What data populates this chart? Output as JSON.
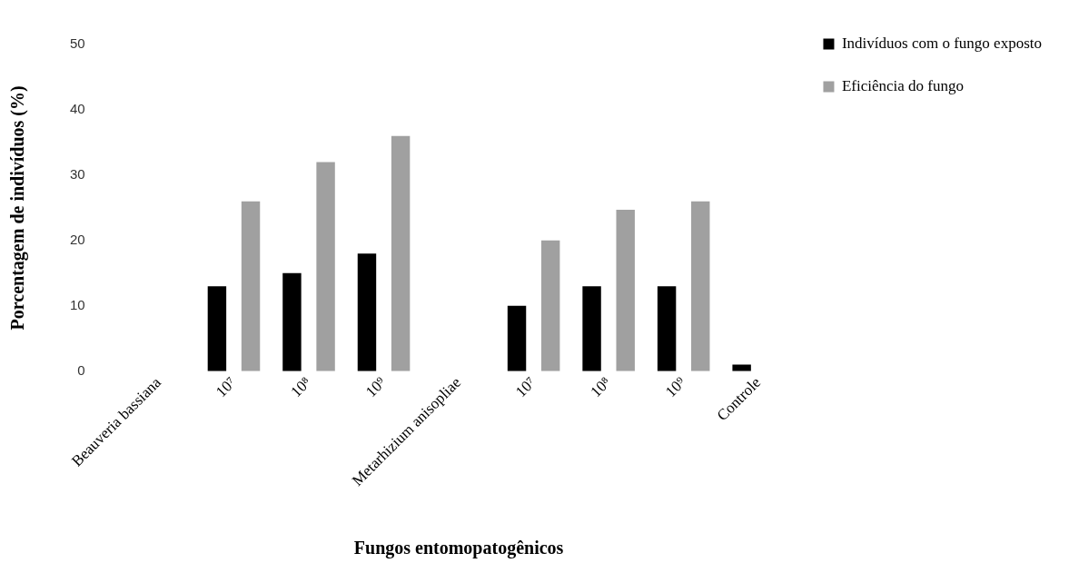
{
  "chart_data": {
    "type": "bar",
    "xlabel": "Fungos entomopatogênicos",
    "ylabel": "Porcentagem de indivíduos (%)",
    "categories": [
      "Beauveria bassiana",
      "10⁷",
      "10⁸",
      "10⁹",
      "Metarhizium anisopliae",
      "10⁷",
      "10⁸",
      "10⁹",
      "Controle"
    ],
    "series": [
      {
        "name": "Indivíduos com o fungo exposto",
        "color": "#000000",
        "values": [
          null,
          13,
          15,
          18,
          null,
          10,
          13,
          13,
          1
        ]
      },
      {
        "name": "Eficiência do fungo",
        "color": "#a0a0a0",
        "values": [
          null,
          26,
          32,
          36,
          null,
          20,
          24.7,
          26,
          null
        ]
      }
    ],
    "ylim": [
      0,
      50
    ],
    "yticks": [
      0,
      10,
      20,
      30,
      40,
      50
    ],
    "grid": false,
    "legend": "right"
  }
}
